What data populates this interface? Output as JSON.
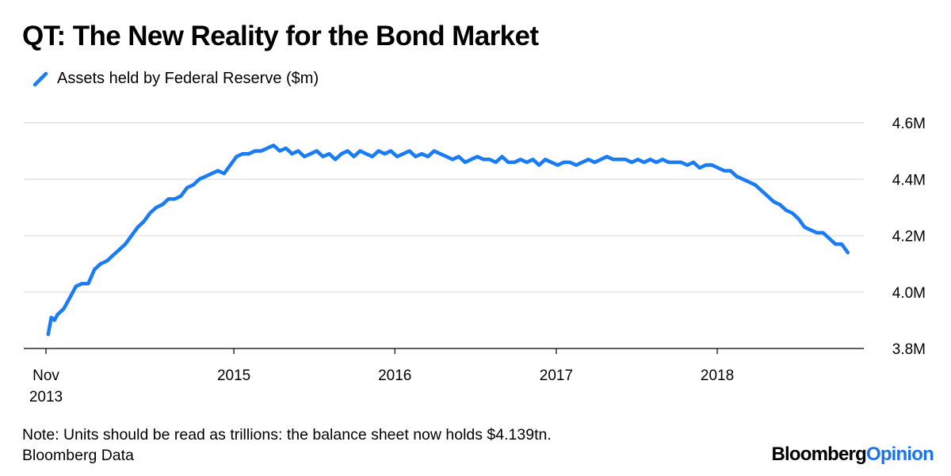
{
  "title": "QT: The New Reality for the Bond Market",
  "legend": {
    "label": "Assets held by Federal Reserve ($m)",
    "color": "#1a7cf5",
    "icon": "diagonal-line-icon"
  },
  "note": "Note: Units should be read as trillions: the balance sheet now holds $4.139tn.",
  "source": "Bloomberg Data",
  "brand": {
    "part1": "Bloomberg",
    "part2": "Opinion"
  },
  "chart_data": {
    "type": "line",
    "xlabel": "",
    "ylabel": "",
    "xlim": [
      "2013-11",
      "2018-10"
    ],
    "ylim": [
      3.8,
      4.6
    ],
    "y_ticks": [
      "3.8M",
      "4.0M",
      "4.2M",
      "4.4M",
      "4.6M"
    ],
    "y_tick_values": [
      3.8,
      4.0,
      4.2,
      4.4,
      4.6
    ],
    "x_ticks": [
      {
        "date": "2013-11",
        "line1": "Nov",
        "line2": "2013"
      },
      {
        "date": "2015-01",
        "line1": "2015",
        "line2": ""
      },
      {
        "date": "2016-01",
        "line1": "2016",
        "line2": ""
      },
      {
        "date": "2017-01",
        "line1": "2017",
        "line2": ""
      },
      {
        "date": "2018-01",
        "line1": "2018",
        "line2": ""
      }
    ],
    "grid": "horizontal",
    "legend_position": "top-left",
    "series": [
      {
        "name": "Assets held by Federal Reserve ($m)",
        "color": "#1a7cf5",
        "points": [
          [
            "2013-11-06",
            3.85
          ],
          [
            "2013-11-13",
            3.91
          ],
          [
            "2013-11-20",
            3.9
          ],
          [
            "2013-11-27",
            3.92
          ],
          [
            "2013-12-11",
            3.94
          ],
          [
            "2013-12-25",
            3.98
          ],
          [
            "2014-01-08",
            4.02
          ],
          [
            "2014-01-22",
            4.03
          ],
          [
            "2014-02-05",
            4.03
          ],
          [
            "2014-02-19",
            4.08
          ],
          [
            "2014-03-05",
            4.1
          ],
          [
            "2014-03-19",
            4.11
          ],
          [
            "2014-04-02",
            4.13
          ],
          [
            "2014-04-16",
            4.15
          ],
          [
            "2014-04-30",
            4.17
          ],
          [
            "2014-05-14",
            4.2
          ],
          [
            "2014-05-28",
            4.23
          ],
          [
            "2014-06-11",
            4.25
          ],
          [
            "2014-06-25",
            4.28
          ],
          [
            "2014-07-09",
            4.3
          ],
          [
            "2014-07-23",
            4.31
          ],
          [
            "2014-08-06",
            4.33
          ],
          [
            "2014-08-20",
            4.33
          ],
          [
            "2014-09-03",
            4.34
          ],
          [
            "2014-09-17",
            4.37
          ],
          [
            "2014-10-01",
            4.38
          ],
          [
            "2014-10-15",
            4.4
          ],
          [
            "2014-10-29",
            4.41
          ],
          [
            "2014-11-12",
            4.42
          ],
          [
            "2014-11-26",
            4.43
          ],
          [
            "2014-12-10",
            4.42
          ],
          [
            "2014-12-24",
            4.45
          ],
          [
            "2015-01-07",
            4.48
          ],
          [
            "2015-01-21",
            4.49
          ],
          [
            "2015-02-04",
            4.49
          ],
          [
            "2015-02-18",
            4.5
          ],
          [
            "2015-03-04",
            4.5
          ],
          [
            "2015-03-18",
            4.51
          ],
          [
            "2015-04-01",
            4.52
          ],
          [
            "2015-04-15",
            4.5
          ],
          [
            "2015-04-29",
            4.51
          ],
          [
            "2015-05-13",
            4.49
          ],
          [
            "2015-05-27",
            4.5
          ],
          [
            "2015-06-10",
            4.48
          ],
          [
            "2015-06-24",
            4.49
          ],
          [
            "2015-07-08",
            4.5
          ],
          [
            "2015-07-22",
            4.48
          ],
          [
            "2015-08-05",
            4.49
          ],
          [
            "2015-08-19",
            4.47
          ],
          [
            "2015-09-02",
            4.49
          ],
          [
            "2015-09-16",
            4.5
          ],
          [
            "2015-09-30",
            4.48
          ],
          [
            "2015-10-14",
            4.5
          ],
          [
            "2015-10-28",
            4.49
          ],
          [
            "2015-11-11",
            4.48
          ],
          [
            "2015-11-25",
            4.5
          ],
          [
            "2015-12-09",
            4.49
          ],
          [
            "2015-12-23",
            4.5
          ],
          [
            "2016-01-06",
            4.48
          ],
          [
            "2016-01-20",
            4.49
          ],
          [
            "2016-02-03",
            4.5
          ],
          [
            "2016-02-17",
            4.48
          ],
          [
            "2016-03-02",
            4.49
          ],
          [
            "2016-03-16",
            4.48
          ],
          [
            "2016-03-30",
            4.5
          ],
          [
            "2016-04-13",
            4.49
          ],
          [
            "2016-04-27",
            4.48
          ],
          [
            "2016-05-11",
            4.47
          ],
          [
            "2016-05-25",
            4.48
          ],
          [
            "2016-06-08",
            4.46
          ],
          [
            "2016-06-22",
            4.47
          ],
          [
            "2016-07-06",
            4.48
          ],
          [
            "2016-07-20",
            4.47
          ],
          [
            "2016-08-03",
            4.47
          ],
          [
            "2016-08-17",
            4.46
          ],
          [
            "2016-08-31",
            4.48
          ],
          [
            "2016-09-14",
            4.46
          ],
          [
            "2016-09-28",
            4.46
          ],
          [
            "2016-10-12",
            4.47
          ],
          [
            "2016-10-26",
            4.46
          ],
          [
            "2016-11-09",
            4.47
          ],
          [
            "2016-11-23",
            4.45
          ],
          [
            "2016-12-07",
            4.47
          ],
          [
            "2016-12-21",
            4.46
          ],
          [
            "2017-01-04",
            4.45
          ],
          [
            "2017-01-18",
            4.46
          ],
          [
            "2017-02-01",
            4.46
          ],
          [
            "2017-02-15",
            4.45
          ],
          [
            "2017-03-01",
            4.46
          ],
          [
            "2017-03-15",
            4.47
          ],
          [
            "2017-03-29",
            4.46
          ],
          [
            "2017-04-12",
            4.47
          ],
          [
            "2017-04-26",
            4.48
          ],
          [
            "2017-05-10",
            4.47
          ],
          [
            "2017-05-24",
            4.47
          ],
          [
            "2017-06-07",
            4.47
          ],
          [
            "2017-06-21",
            4.46
          ],
          [
            "2017-07-05",
            4.47
          ],
          [
            "2017-07-19",
            4.46
          ],
          [
            "2017-08-02",
            4.47
          ],
          [
            "2017-08-16",
            4.46
          ],
          [
            "2017-08-30",
            4.47
          ],
          [
            "2017-09-13",
            4.46
          ],
          [
            "2017-09-27",
            4.46
          ],
          [
            "2017-10-11",
            4.46
          ],
          [
            "2017-10-25",
            4.45
          ],
          [
            "2017-11-08",
            4.46
          ],
          [
            "2017-11-22",
            4.44
          ],
          [
            "2017-12-06",
            4.45
          ],
          [
            "2017-12-20",
            4.45
          ],
          [
            "2018-01-03",
            4.44
          ],
          [
            "2018-01-17",
            4.43
          ],
          [
            "2018-01-31",
            4.43
          ],
          [
            "2018-02-14",
            4.41
          ],
          [
            "2018-02-28",
            4.4
          ],
          [
            "2018-03-14",
            4.39
          ],
          [
            "2018-03-28",
            4.38
          ],
          [
            "2018-04-11",
            4.36
          ],
          [
            "2018-04-25",
            4.34
          ],
          [
            "2018-05-09",
            4.32
          ],
          [
            "2018-05-23",
            4.31
          ],
          [
            "2018-06-06",
            4.29
          ],
          [
            "2018-06-20",
            4.28
          ],
          [
            "2018-07-04",
            4.26
          ],
          [
            "2018-07-18",
            4.23
          ],
          [
            "2018-08-01",
            4.22
          ],
          [
            "2018-08-15",
            4.21
          ],
          [
            "2018-08-29",
            4.21
          ],
          [
            "2018-09-12",
            4.19
          ],
          [
            "2018-09-26",
            4.17
          ],
          [
            "2018-10-10",
            4.17
          ],
          [
            "2018-10-24",
            4.14
          ]
        ]
      }
    ]
  }
}
